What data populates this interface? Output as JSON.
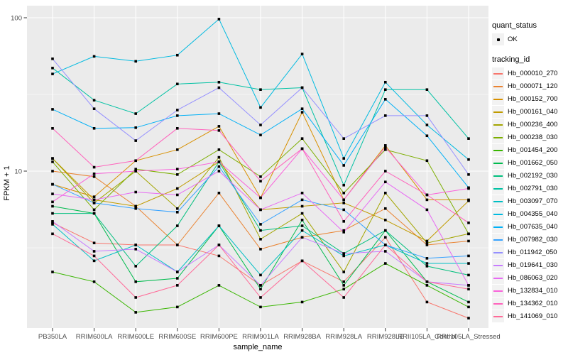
{
  "legend": {
    "quant_status_title": "quant_status",
    "quant_status_items": [
      {
        "label": "OK",
        "marker": "point-black"
      }
    ],
    "tracking_id_title": "tracking_id"
  },
  "colors": {
    "panel_background": "#EBEBEB",
    "gridline": "#FFFFFF",
    "point": "#000000",
    "tick_label": "#4D4D4D",
    "axis_title": "#000000",
    "legend_key_background": "#F2F2F2"
  },
  "chart_data": {
    "type": "line",
    "title": "",
    "xlabel": "sample_name",
    "ylabel": "FPKM + 1",
    "y_scale": "log10",
    "y_tick_values": [
      10,
      100
    ],
    "y_tick_labels": [
      "10",
      "100"
    ],
    "y_minor_gridlines": [
      3.162,
      31.62
    ],
    "ylim": [
      0.95,
      110
    ],
    "grid": true,
    "legend_position": "right",
    "x_categories": [
      "PB350LA",
      "RRIM600LA",
      "RRIM600LE",
      "RRIM600SE",
      "RRIM600PE",
      "RRIM901LA",
      "RRIM928BA",
      "RRIM928LA",
      "RRIM928LE",
      "RRII105LA_Control",
      "RRII105LA_Stressed"
    ],
    "series": [
      {
        "name": "Hb_000010_270",
        "color": "#F8766D",
        "values": [
          4.6,
          3.4,
          3.3,
          3.3,
          2.8,
          1.8,
          2.6,
          1.9,
          3.7,
          1.4,
          1.1
        ]
      },
      {
        "name": "Hb_000071_120",
        "color": "#EA8331",
        "values": [
          10.0,
          9.2,
          5.9,
          3.3,
          7.2,
          3.1,
          3.7,
          4.1,
          5.7,
          3.3,
          3.5
        ]
      },
      {
        "name": "Hb_000152_700",
        "color": "#D89000",
        "values": [
          8.2,
          6.8,
          11.7,
          13.8,
          19.6,
          6.7,
          24.2,
          6.5,
          14.7,
          6.5,
          6.5
        ]
      },
      {
        "name": "Hb_000161_040",
        "color": "#C09B00",
        "values": [
          12.1,
          6.5,
          5.9,
          7.7,
          11.5,
          5.6,
          5.9,
          6.2,
          4.8,
          3.5,
          6.4
        ]
      },
      {
        "name": "Hb_000236_400",
        "color": "#A3A500",
        "values": [
          12.1,
          6.2,
          10.0,
          5.7,
          12.3,
          3.6,
          5.3,
          2.2,
          7.2,
          3.4,
          3.9
        ]
      },
      {
        "name": "Hb_000238_030",
        "color": "#7CAE00",
        "values": [
          11.5,
          5.6,
          10.3,
          9.5,
          13.8,
          9.2,
          16.3,
          7.2,
          13.8,
          11.7,
          3.9
        ]
      },
      {
        "name": "Hb_001454_200",
        "color": "#39B600",
        "values": [
          2.2,
          1.9,
          1.2,
          1.3,
          1.8,
          1.3,
          1.4,
          1.7,
          2.5,
          1.8,
          1.3
        ]
      },
      {
        "name": "Hb_001662_050",
        "color": "#00BB4E",
        "values": [
          5.9,
          5.3,
          1.9,
          2.0,
          4.4,
          1.7,
          4.8,
          1.8,
          4.1,
          1.9,
          1.4
        ]
      },
      {
        "name": "Hb_002192_030",
        "color": "#00BF7D",
        "values": [
          5.3,
          5.3,
          2.4,
          4.4,
          11.5,
          4.1,
          4.4,
          2.9,
          4.1,
          2.4,
          2.1
        ]
      },
      {
        "name": "Hb_002791_030",
        "color": "#00C1A3",
        "values": [
          47,
          29,
          23.7,
          37,
          38,
          34,
          35,
          8.1,
          34,
          34,
          16.3
        ]
      },
      {
        "name": "Hb_003097_070",
        "color": "#00BFC4",
        "values": [
          4.5,
          2.6,
          3.3,
          2.2,
          4.4,
          2.1,
          4.1,
          2.8,
          3.3,
          2.5,
          2.5
        ]
      },
      {
        "name": "Hb_004355_040",
        "color": "#00BAE0",
        "values": [
          43,
          56,
          52,
          57,
          98,
          26,
          58,
          12.1,
          38,
          20,
          11.9
        ]
      },
      {
        "name": "Hb_007635_040",
        "color": "#00B0F6",
        "values": [
          25.3,
          19,
          19.2,
          23,
          23.7,
          17.2,
          25.5,
          10.9,
          29.4,
          17,
          7.8
        ]
      },
      {
        "name": "Hb_007982_030",
        "color": "#35A2FF",
        "values": [
          8.2,
          6.2,
          5.7,
          5.4,
          10.7,
          4.5,
          6.5,
          5.6,
          3.3,
          2.7,
          2.8
        ]
      },
      {
        "name": "Hb_011942_050",
        "color": "#9590FF",
        "values": [
          54,
          25.5,
          15.8,
          25,
          35,
          20,
          35,
          16.3,
          23,
          23,
          9.5
        ]
      },
      {
        "name": "Hb_019641_030",
        "color": "#C77CFF",
        "values": [
          4.7,
          3.0,
          3.1,
          2.2,
          3.3,
          1.8,
          3.7,
          2.9,
          3.0,
          1.9,
          1.8
        ]
      },
      {
        "name": "Hb_086063_020",
        "color": "#E76BF3",
        "values": [
          7.1,
          6.5,
          7.3,
          7.0,
          10.0,
          5.6,
          7.2,
          4.0,
          8.5,
          5.6,
          1.8
        ]
      },
      {
        "name": "Hb_132834_010",
        "color": "#FA62DB",
        "values": [
          6.3,
          9.6,
          10.0,
          10.3,
          11.5,
          6.7,
          14.0,
          6.5,
          14.3,
          7.0,
          7.7
        ]
      },
      {
        "name": "Hb_134362_010",
        "color": "#FF62BC",
        "values": [
          19,
          10.6,
          11.7,
          19,
          18.4,
          8.6,
          14.0,
          4.7,
          10.0,
          7.0,
          4.6
        ]
      },
      {
        "name": "Hb_141069_010",
        "color": "#FF6A98",
        "values": [
          3.9,
          2.8,
          1.5,
          1.8,
          3.3,
          1.5,
          2.6,
          1.5,
          3.3,
          1.9,
          1.7
        ]
      }
    ]
  }
}
